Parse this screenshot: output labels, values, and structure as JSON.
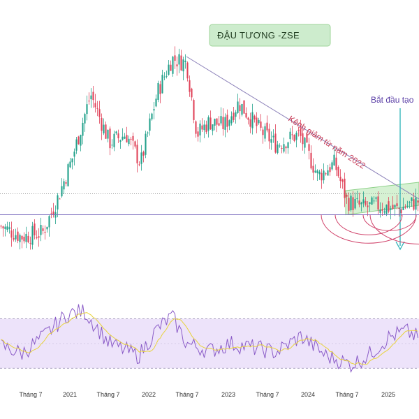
{
  "chart_data": {
    "type": "candlestick",
    "title": "ĐẬU TƯƠNG -ZSE",
    "annotations": {
      "channel": "Kênh giảm từ năm 2022",
      "start": "Bắt đầu tạo"
    },
    "x_ticks": [
      "Tháng 7",
      "2021",
      "Tháng 7",
      "2022",
      "Tháng 7",
      "2023",
      "Tháng 7",
      "2024",
      "Tháng 7",
      "2025"
    ],
    "price_ylim": [
      7.5,
      18.5
    ],
    "price_key_points": [
      {
        "t": 0,
        "v": 9.2
      },
      {
        "t": 0.05,
        "v": 8.7
      },
      {
        "t": 0.1,
        "v": 8.9
      },
      {
        "t": 0.135,
        "v": 10.5
      },
      {
        "t": 0.17,
        "v": 12.4
      },
      {
        "t": 0.215,
        "v": 15.5
      },
      {
        "t": 0.26,
        "v": 13.2
      },
      {
        "t": 0.3,
        "v": 13.6
      },
      {
        "t": 0.335,
        "v": 12.2
      },
      {
        "t": 0.375,
        "v": 15.6
      },
      {
        "t": 0.41,
        "v": 17.2
      },
      {
        "t": 0.445,
        "v": 17.0
      },
      {
        "t": 0.47,
        "v": 13.6
      },
      {
        "t": 0.5,
        "v": 14.2
      },
      {
        "t": 0.535,
        "v": 14.0
      },
      {
        "t": 0.57,
        "v": 15.1
      },
      {
        "t": 0.62,
        "v": 13.8
      },
      {
        "t": 0.66,
        "v": 13.1
      },
      {
        "t": 0.715,
        "v": 13.6
      },
      {
        "t": 0.76,
        "v": 11.6
      },
      {
        "t": 0.8,
        "v": 12.2
      },
      {
        "t": 0.83,
        "v": 10.4
      },
      {
        "t": 0.87,
        "v": 10.1
      },
      {
        "t": 0.91,
        "v": 10.2
      },
      {
        "t": 0.95,
        "v": 10.0
      },
      {
        "t": 1.0,
        "v": 10.4
      }
    ],
    "rsi_ylim": [
      20,
      85
    ],
    "rsi_key_points": [
      {
        "t": 0,
        "v": 48
      },
      {
        "t": 0.05,
        "v": 42
      },
      {
        "t": 0.1,
        "v": 55
      },
      {
        "t": 0.16,
        "v": 74
      },
      {
        "t": 0.2,
        "v": 76
      },
      {
        "t": 0.26,
        "v": 50
      },
      {
        "t": 0.33,
        "v": 40
      },
      {
        "t": 0.375,
        "v": 62
      },
      {
        "t": 0.41,
        "v": 72
      },
      {
        "t": 0.445,
        "v": 50
      },
      {
        "t": 0.5,
        "v": 44
      },
      {
        "t": 0.55,
        "v": 50
      },
      {
        "t": 0.6,
        "v": 47
      },
      {
        "t": 0.66,
        "v": 43
      },
      {
        "t": 0.72,
        "v": 56
      },
      {
        "t": 0.78,
        "v": 40
      },
      {
        "t": 0.84,
        "v": 33
      },
      {
        "t": 0.88,
        "v": 40
      },
      {
        "t": 0.93,
        "v": 55
      },
      {
        "t": 0.97,
        "v": 60
      },
      {
        "t": 1.0,
        "v": 55
      }
    ],
    "rsi_band": [
      30,
      70
    ],
    "colors": {
      "up": "#22a18b",
      "down": "#e0435a",
      "rsi": "#8a5bc7",
      "rsi_ma": "#e8d33a",
      "rsi_band_fill": "#ede3fa",
      "channel_fill": "#c8ecc4",
      "channel_line": "#8fd18a",
      "trendline": "#8a7fb8",
      "hline": "#7d6fc0",
      "arrow": "#2bb3b8",
      "arcs": "#d0426a"
    },
    "grid": false
  }
}
